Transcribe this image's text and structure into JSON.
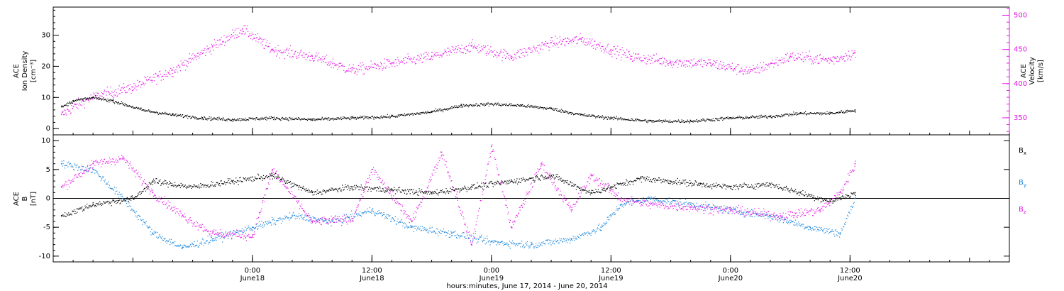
{
  "colors": {
    "density": "#000000",
    "velocity": "#e619e6",
    "bx": "#000000",
    "by": "#1a86dd",
    "bz": "#e619e6",
    "axis": "#000000",
    "velocity_axis": "#e619e6"
  },
  "chart_data": [
    {
      "type": "scatter",
      "panel": "top",
      "ylabel": [
        "ACE",
        "Ion Density",
        "[cm⁻³]"
      ],
      "ylabel_right": [
        "ACE",
        "Velocity",
        "[km/s]"
      ],
      "ylim": [
        -2,
        39
      ],
      "yticks": [
        "0",
        "10",
        "20",
        "30"
      ],
      "ylim_right": [
        325,
        512
      ],
      "yticks_right": [
        "350",
        "400",
        "450",
        "500"
      ],
      "series": [
        {
          "name": "Ion Density",
          "axis": "left",
          "color": "#000000",
          "points": [
            [
              "2014-06-17T04:50",
              7
            ],
            [
              "2014-06-17T06:00",
              9
            ],
            [
              "2014-06-17T08:00",
              10
            ],
            [
              "2014-06-17T10:00",
              9
            ],
            [
              "2014-06-17T13:00",
              6
            ],
            [
              "2014-06-17T16:00",
              4.5
            ],
            [
              "2014-06-17T19:00",
              3.5
            ],
            [
              "2014-06-17T22:00",
              3
            ],
            [
              "2014-06-18T02:00",
              3.5
            ],
            [
              "2014-06-18T06:00",
              3
            ],
            [
              "2014-06-18T10:00",
              3.5
            ],
            [
              "2014-06-18T14:00",
              4
            ],
            [
              "2014-06-18T18:00",
              5.5
            ],
            [
              "2014-06-18T21:00",
              7.5
            ],
            [
              "2014-06-19T00:00",
              8
            ],
            [
              "2014-06-19T03:00",
              7.5
            ],
            [
              "2014-06-19T06:00",
              6.5
            ],
            [
              "2014-06-19T09:00",
              4.5
            ],
            [
              "2014-06-19T12:00",
              3.5
            ],
            [
              "2014-06-19T16:00",
              2.5
            ],
            [
              "2014-06-19T20:00",
              2.5
            ],
            [
              "2014-06-20T00:00",
              3.5
            ],
            [
              "2014-06-20T04:00",
              4
            ],
            [
              "2014-06-20T07:00",
              5
            ],
            [
              "2014-06-20T10:00",
              5
            ],
            [
              "2014-06-20T12:30",
              6
            ]
          ]
        },
        {
          "name": "Velocity",
          "axis": "right",
          "color": "#e619e6",
          "points": [
            [
              "2014-06-17T04:50",
              355
            ],
            [
              "2014-06-17T07:00",
              375
            ],
            [
              "2014-06-17T09:00",
              385
            ],
            [
              "2014-06-17T12:00",
              395
            ],
            [
              "2014-06-17T16:00",
              420
            ],
            [
              "2014-06-17T20:00",
              455
            ],
            [
              "2014-06-17T23:00",
              480
            ],
            [
              "2014-06-18T02:00",
              450
            ],
            [
              "2014-06-18T06:00",
              440
            ],
            [
              "2014-06-18T10:00",
              420
            ],
            [
              "2014-06-18T14:00",
              430
            ],
            [
              "2014-06-18T18:00",
              440
            ],
            [
              "2014-06-18T22:00",
              455
            ],
            [
              "2014-06-19T02:00",
              440
            ],
            [
              "2014-06-19T06:00",
              460
            ],
            [
              "2014-06-19T09:00",
              465
            ],
            [
              "2014-06-19T12:00",
              450
            ],
            [
              "2014-06-19T14:00",
              440
            ],
            [
              "2014-06-19T18:00",
              432
            ],
            [
              "2014-06-19T22:00",
              430
            ],
            [
              "2014-06-20T02:00",
              418
            ],
            [
              "2014-06-20T06:00",
              440
            ],
            [
              "2014-06-20T10:00",
              435
            ],
            [
              "2014-06-20T12:30",
              445
            ]
          ]
        }
      ]
    },
    {
      "type": "scatter",
      "panel": "bottom",
      "ylabel": [
        "ACE",
        "B",
        "[nT]"
      ],
      "ylim": [
        -11,
        11
      ],
      "yticks": [
        "-10",
        "-5",
        "0",
        "5",
        "10"
      ],
      "xlabel": "hours:minutes, June 17, 2014 - June 20, 2014",
      "xlim": [
        "2014-06-17T04:00",
        "2014-06-21T04:00"
      ],
      "xticks": [
        {
          "t": "2014-06-18T00:00",
          "label": [
            "0:00",
            "June18"
          ]
        },
        {
          "t": "2014-06-18T12:00",
          "label": [
            "12:00",
            "June18"
          ]
        },
        {
          "t": "2014-06-19T00:00",
          "label": [
            "0:00",
            "June19"
          ]
        },
        {
          "t": "2014-06-19T12:00",
          "label": [
            "12:00",
            "June19"
          ]
        },
        {
          "t": "2014-06-20T00:00",
          "label": [
            "0:00",
            "June20"
          ]
        },
        {
          "t": "2014-06-20T12:00",
          "label": [
            "12:00",
            "June20"
          ]
        }
      ],
      "series": [
        {
          "name": "Bx",
          "label_main": "B",
          "label_sub": "x",
          "color": "#000000",
          "points": [
            [
              "2014-06-17T04:50",
              -3
            ],
            [
              "2014-06-17T08:00",
              -1
            ],
            [
              "2014-06-17T12:00",
              0
            ],
            [
              "2014-06-17T14:00",
              3
            ],
            [
              "2014-06-17T18:00",
              2
            ],
            [
              "2014-06-17T22:00",
              3
            ],
            [
              "2014-06-18T02:00",
              4
            ],
            [
              "2014-06-18T06:00",
              1
            ],
            [
              "2014-06-18T10:00",
              2
            ],
            [
              "2014-06-18T14:00",
              1.5
            ],
            [
              "2014-06-18T18:00",
              1
            ],
            [
              "2014-06-18T22:00",
              2
            ],
            [
              "2014-06-19T02:00",
              3
            ],
            [
              "2014-06-19T06:00",
              4
            ],
            [
              "2014-06-19T10:00",
              1
            ],
            [
              "2014-06-19T12:00",
              2
            ],
            [
              "2014-06-19T15:00",
              3.5
            ],
            [
              "2014-06-19T18:00",
              3
            ],
            [
              "2014-06-19T21:00",
              2.5
            ],
            [
              "2014-06-20T00:00",
              2
            ],
            [
              "2014-06-20T04:00",
              2.5
            ],
            [
              "2014-06-20T07:00",
              1
            ],
            [
              "2014-06-20T10:00",
              -0.5
            ],
            [
              "2014-06-20T12:30",
              1
            ]
          ]
        },
        {
          "name": "By",
          "label_main": "B",
          "label_sub": "y",
          "color": "#1a86dd",
          "points": [
            [
              "2014-06-17T04:50",
              6
            ],
            [
              "2014-06-17T08:00",
              5
            ],
            [
              "2014-06-17T11:00",
              0
            ],
            [
              "2014-06-17T14:00",
              -6
            ],
            [
              "2014-06-17T17:00",
              -8.5
            ],
            [
              "2014-06-17T20:00",
              -7
            ],
            [
              "2014-06-18T00:00",
              -5
            ],
            [
              "2014-06-18T04:00",
              -3
            ],
            [
              "2014-06-18T08:00",
              -4
            ],
            [
              "2014-06-18T12:00",
              -2
            ],
            [
              "2014-06-18T16:00",
              -5
            ],
            [
              "2014-06-18T20:00",
              -6
            ],
            [
              "2014-06-19T00:00",
              -7.5
            ],
            [
              "2014-06-19T04:00",
              -8
            ],
            [
              "2014-06-19T08:00",
              -7
            ],
            [
              "2014-06-19T11:00",
              -5
            ],
            [
              "2014-06-19T13:00",
              -1
            ],
            [
              "2014-06-19T16:00",
              0
            ],
            [
              "2014-06-19T20:00",
              -1
            ],
            [
              "2014-06-20T00:00",
              -2
            ],
            [
              "2014-06-20T04:00",
              -3
            ],
            [
              "2014-06-20T08:00",
              -5
            ],
            [
              "2014-06-20T11:00",
              -6
            ],
            [
              "2014-06-20T12:30",
              0
            ]
          ]
        },
        {
          "name": "Bz",
          "label_main": "B",
          "label_sub": "z",
          "color": "#e619e6",
          "points": [
            [
              "2014-06-17T04:50",
              2
            ],
            [
              "2014-06-17T08:00",
              6
            ],
            [
              "2014-06-17T11:00",
              7
            ],
            [
              "2014-06-17T14:00",
              1
            ],
            [
              "2014-06-17T17:00",
              -3
            ],
            [
              "2014-06-17T20:00",
              -6
            ],
            [
              "2014-06-18T00:00",
              -6.5
            ],
            [
              "2014-06-18T02:00",
              5
            ],
            [
              "2014-06-18T06:00",
              -4
            ],
            [
              "2014-06-18T10:00",
              -3.5
            ],
            [
              "2014-06-18T12:00",
              5
            ],
            [
              "2014-06-18T16:00",
              -4
            ],
            [
              "2014-06-18T19:00",
              8
            ],
            [
              "2014-06-18T22:00",
              -8
            ],
            [
              "2014-06-19T00:00",
              9
            ],
            [
              "2014-06-19T02:00",
              -5
            ],
            [
              "2014-06-19T05:00",
              6
            ],
            [
              "2014-06-19T08:00",
              -2
            ],
            [
              "2014-06-19T10:00",
              4
            ],
            [
              "2014-06-19T13:00",
              0
            ],
            [
              "2014-06-19T16:00",
              -1
            ],
            [
              "2014-06-19T20:00",
              -1.5
            ],
            [
              "2014-06-20T00:00",
              -2
            ],
            [
              "2014-06-20T05:00",
              -3
            ],
            [
              "2014-06-20T09:00",
              -2
            ],
            [
              "2014-06-20T11:00",
              1
            ],
            [
              "2014-06-20T12:30",
              6
            ]
          ]
        }
      ]
    }
  ]
}
